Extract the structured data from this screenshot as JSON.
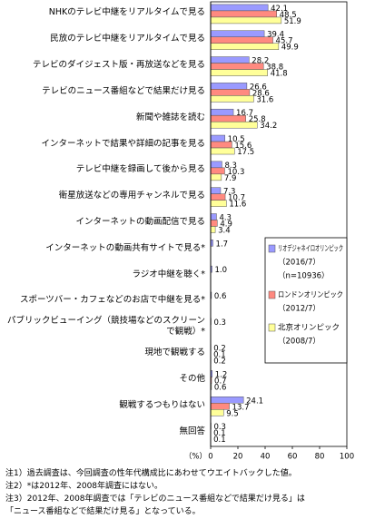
{
  "chart_data": {
    "type": "hbar",
    "categories": [
      "NHKのテレビ中継をリアルタイムで見る",
      "民放のテレビ中継をリアルタイムで見る",
      "テレビのダイジェスト版・再放送などを見る",
      "テレビのニュース番組などで結果だけ見る",
      "新聞や雑誌を読む",
      "インターネットで結果や詳細の記事を見る",
      "テレビ中継を録画して後から見る",
      "衛星放送などの専用チャンネルで見る",
      "インターネットの動画配信で見る",
      "インターネットの動画共有サイトで見る*",
      "ラジオ中継を聴く*",
      "スポーツバー・カフェなどのお店で中継を見る*",
      "パブリックビューイング（競技場などのスクリーンで観戦）*",
      "現地で観戦する",
      "その他",
      "観戦するつもりはない",
      "無回答"
    ],
    "series": [
      {
        "name": "リオデジャネイロオリンピック",
        "legend_notes": [
          "（2016/7）",
          "（n=10936）"
        ],
        "color": "#9a9aff",
        "values": [
          42.1,
          39.4,
          28.2,
          26.6,
          16.7,
          10.5,
          8.3,
          7.3,
          4.3,
          1.7,
          1.0,
          0.6,
          0.3,
          0.2,
          1.2,
          24.1,
          0.3
        ],
        "value_labels": [
          "42.1",
          "39.4",
          "28.2",
          "26.6",
          "16.7",
          "10.5",
          "8.3",
          "7.3",
          "4.3",
          "1.7",
          "1.0",
          "0.6",
          "0.3",
          "0.2",
          "1.2",
          "24.1",
          "0.3"
        ]
      },
      {
        "name": "ロンドンオリンピック",
        "legend_notes": [
          "（2012/7）"
        ],
        "color": "#ff8a80",
        "values": [
          48.5,
          45.7,
          38.8,
          28.6,
          25.8,
          15.6,
          10.3,
          10.7,
          4.9,
          null,
          null,
          null,
          null,
          0.1,
          0.7,
          13.7,
          0.1
        ],
        "value_labels": [
          "48.5",
          "45.7",
          "38.8",
          "28.6",
          "25.8",
          "15.6",
          "10.3",
          "10.7",
          "4.9",
          null,
          null,
          null,
          null,
          "0.1",
          "0.7",
          "13.7",
          "0.1"
        ]
      },
      {
        "name": "北京オリンピック",
        "legend_notes": [
          "（2008/7）"
        ],
        "color": "#ffff99",
        "values": [
          51.9,
          49.9,
          41.8,
          31.6,
          34.2,
          17.5,
          7.9,
          11.6,
          3.4,
          null,
          null,
          null,
          null,
          0.2,
          0.6,
          9.5,
          0.1
        ],
        "value_labels": [
          "51.9",
          "49.9",
          "41.8",
          "31.6",
          "34.2",
          "17.5",
          "7.9",
          "11.6",
          "3.4",
          null,
          null,
          null,
          null,
          "0.2",
          "0.6",
          "9.5",
          "0.1"
        ]
      }
    ],
    "xlim": [
      0,
      100
    ],
    "xticks": [
      0,
      20,
      40,
      60,
      80,
      100
    ],
    "x_unit": "（%）",
    "notes": [
      "注1）過去調査は、今回調査の性年代構成比にあわせてウエイトバックした値。",
      "注2）*は2012年、2008年調査にはない。",
      "注3）2012年、2008年調査では「テレビのニュース番組などで結果だけ見る」は",
      "「ニュース番組などで結果だけ見る」となっている。"
    ]
  }
}
